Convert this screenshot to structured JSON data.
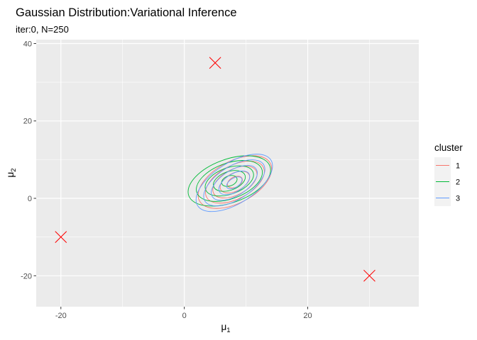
{
  "chart_data": {
    "type": "scatter",
    "title": "Gaussian Distribution:Variational Inference",
    "subtitle": "iter:0, N=250",
    "xlabel": "μ",
    "xlabel_sub": "1",
    "ylabel": "μ",
    "ylabel_sub": "2",
    "xlim": [
      -24,
      38
    ],
    "ylim": [
      -28,
      41
    ],
    "x_ticks": [
      -20,
      0,
      20
    ],
    "y_ticks": [
      -20,
      0,
      20,
      40
    ],
    "grid": true,
    "legend": {
      "title": "cluster",
      "position": "right",
      "entries": [
        "1",
        "2",
        "3"
      ]
    },
    "colors": {
      "1": "#F8766D",
      "2": "#00BA38",
      "3": "#619CFF",
      "true_mean": "#FF0000",
      "panel": "#EBEBEB",
      "grid": "#FFFFFF"
    },
    "true_means": [
      {
        "x": -20,
        "y": -10
      },
      {
        "x": 5,
        "y": 35
      },
      {
        "x": 30,
        "y": -20
      }
    ],
    "series": [
      {
        "name": "1",
        "center": [
          8.2,
          4.2
        ],
        "contour_radii": [
          [
            1.3,
            1.3
          ],
          [
            2.6,
            2.3
          ],
          [
            3.9,
            3.3
          ],
          [
            5.2,
            4.3
          ],
          [
            6.5,
            5.4
          ]
        ],
        "angle_deg": -28
      },
      {
        "name": "2",
        "center": [
          7.3,
          4.5
        ],
        "contour_radii": [
          [
            1.3,
            1.3
          ],
          [
            2.7,
            2.4
          ],
          [
            4.1,
            3.4
          ],
          [
            5.6,
            4.6
          ],
          [
            7.0,
            5.6
          ]
        ],
        "angle_deg": -20
      },
      {
        "name": "3",
        "center": [
          8.1,
          4.0
        ],
        "contour_radii": [
          [
            1.4,
            1.2
          ],
          [
            2.8,
            2.3
          ],
          [
            4.2,
            3.3
          ],
          [
            5.6,
            4.3
          ],
          [
            7.0,
            5.3
          ]
        ],
        "angle_deg": -32
      }
    ]
  }
}
